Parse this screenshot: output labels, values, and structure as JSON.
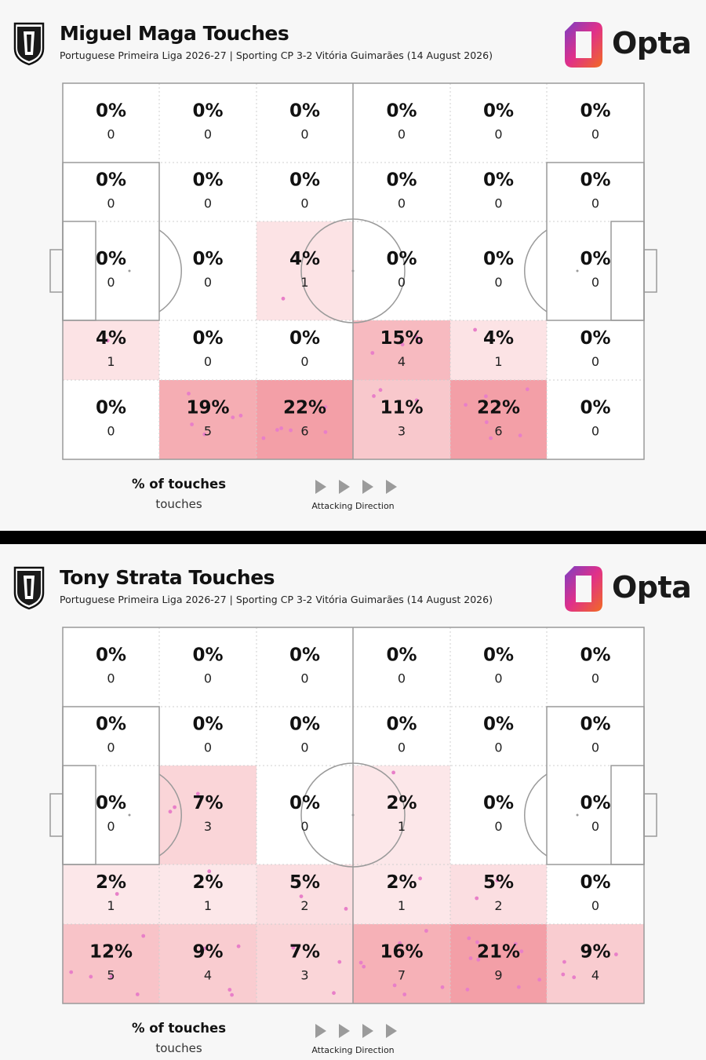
{
  "colors": {
    "heat_base": "#e8404f",
    "dot": "#e87fc8",
    "line": "#9a9a9a",
    "opta_purple": "#7b3fc4",
    "opta_orange": "#f26b21"
  },
  "icons": [
    "club-crest-icon",
    "opta-logo-icon",
    "attacking-direction-arrow-icon"
  ],
  "brand": {
    "name": "Opta"
  },
  "legend": {
    "title": "% of touches",
    "subtitle": "touches",
    "direction_label": "Attacking Direction"
  },
  "chart_data": [
    {
      "type": "heatmap",
      "title": "Miguel Maga Touches",
      "subtitle": "Portuguese Primeira Liga 2026-27 | Sporting CP 3-2 Vitória Guimarães (14 August 2026)",
      "rows": 5,
      "cols": 6,
      "percent_labels": [
        [
          "0%",
          "0%",
          "0%",
          "0%",
          "0%",
          "0%"
        ],
        [
          "0%",
          "0%",
          "0%",
          "0%",
          "0%",
          "0%"
        ],
        [
          "0%",
          "0%",
          "4%",
          "0%",
          "0%",
          "0%"
        ],
        [
          "4%",
          "0%",
          "0%",
          "15%",
          "4%",
          "0%"
        ],
        [
          "0%",
          "19%",
          "22%",
          "11%",
          "22%",
          "0%"
        ]
      ],
      "counts": [
        [
          0,
          0,
          0,
          0,
          0,
          0
        ],
        [
          0,
          0,
          0,
          0,
          0,
          0
        ],
        [
          0,
          0,
          1,
          0,
          0,
          0
        ],
        [
          1,
          0,
          0,
          4,
          1,
          0
        ],
        [
          0,
          5,
          6,
          3,
          6,
          0
        ]
      ]
    },
    {
      "type": "heatmap",
      "title": "Tony Strata Touches",
      "subtitle": "Portuguese Primeira Liga 2026-27 | Sporting CP 3-2 Vitória Guimarães (14 August 2026)",
      "rows": 5,
      "cols": 6,
      "percent_labels": [
        [
          "0%",
          "0%",
          "0%",
          "0%",
          "0%",
          "0%"
        ],
        [
          "0%",
          "0%",
          "0%",
          "0%",
          "0%",
          "0%"
        ],
        [
          "0%",
          "7%",
          "0%",
          "2%",
          "0%",
          "0%"
        ],
        [
          "2%",
          "2%",
          "5%",
          "2%",
          "5%",
          "0%"
        ],
        [
          "12%",
          "9%",
          "7%",
          "16%",
          "21%",
          "9%"
        ]
      ],
      "counts": [
        [
          0,
          0,
          0,
          0,
          0,
          0
        ],
        [
          0,
          0,
          0,
          0,
          0,
          0
        ],
        [
          0,
          3,
          0,
          1,
          0,
          0
        ],
        [
          1,
          1,
          2,
          1,
          2,
          0
        ],
        [
          5,
          4,
          3,
          7,
          9,
          4
        ]
      ]
    }
  ]
}
